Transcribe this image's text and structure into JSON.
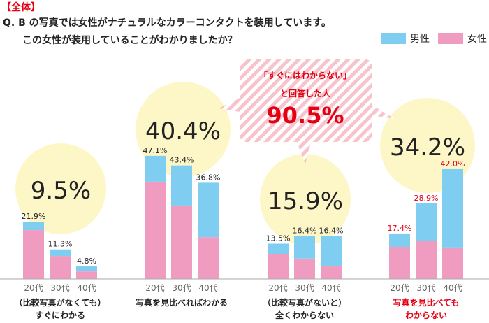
{
  "header": "【全体】",
  "question": {
    "line1": "Q.  B の写真では女性がナチュラルなカラーコンタクトを装用しています。",
    "line2": "この女性が装用していることがわかりましたか？"
  },
  "callout": {
    "line1": "「すぐにはわからない」",
    "line2": "と回答した人",
    "value": "90.5%"
  },
  "colors": {
    "male": "#7fcdf0",
    "female": "#f09cc0",
    "circle": "#fdf7c8",
    "accent": "#e60012",
    "stripe": "#f5b8c4"
  },
  "chart_data": {
    "type": "bar",
    "stacked": true,
    "unit": "%",
    "legend": {
      "position": "top-right",
      "entries": [
        "男性",
        "女性"
      ]
    },
    "categories_age": [
      "20代",
      "30代",
      "40代"
    ],
    "groups": [
      {
        "label1": "（比較写真がなくても）",
        "label2": "すぐにわかる",
        "overall": "9.5%",
        "highlight": false,
        "totals": [
          21.9,
          11.3,
          4.8
        ],
        "total_labels": [
          "21.9%",
          "11.3%",
          "4.8%"
        ],
        "male": [
          3.2,
          2.5,
          1.9
        ],
        "female": [
          18.7,
          8.8,
          2.9
        ]
      },
      {
        "label1": "写真を見比べればわかる",
        "label2": "",
        "overall": "40.4%",
        "highlight": false,
        "totals": [
          47.1,
          43.4,
          36.8
        ],
        "total_labels": [
          "47.1%",
          "43.4%",
          "36.8%"
        ],
        "male": [
          9.9,
          15.3,
          20.8
        ],
        "female": [
          37.2,
          28.1,
          16.0
        ]
      },
      {
        "label1": "（比較写真がないと）",
        "label2": "全くわからない",
        "overall": "15.9%",
        "highlight": false,
        "totals": [
          13.5,
          16.4,
          16.4
        ],
        "total_labels": [
          "13.5%",
          "16.4%",
          "16.4%"
        ],
        "male": [
          3.9,
          8.6,
          11.6
        ],
        "female": [
          9.6,
          7.8,
          4.8
        ]
      },
      {
        "label1": "写真を見比べても",
        "label2": "わからない",
        "overall": "34.2%",
        "highlight": true,
        "totals": [
          17.4,
          28.9,
          42.0
        ],
        "total_labels": [
          "17.4%",
          "28.9%",
          "42.0%"
        ],
        "male": [
          5.1,
          14.2,
          30.2
        ],
        "female": [
          12.3,
          14.7,
          11.8
        ]
      }
    ]
  }
}
